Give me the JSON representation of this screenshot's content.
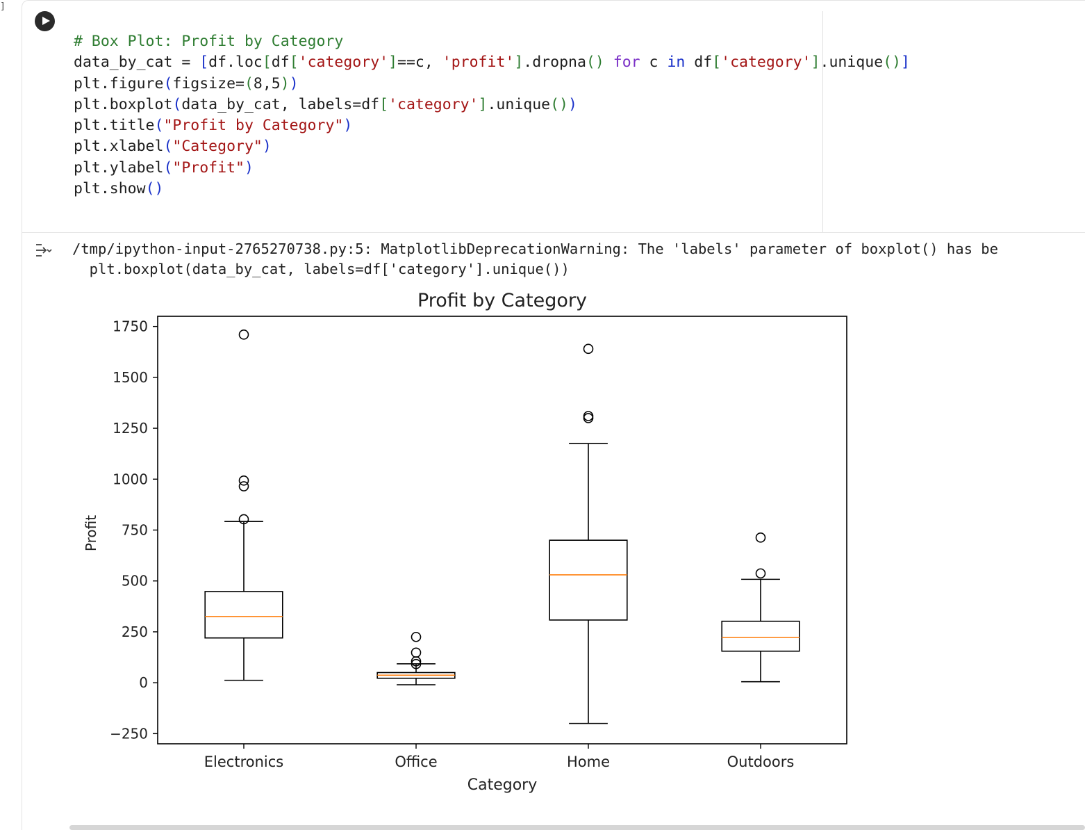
{
  "gutter": {
    "marker": "]"
  },
  "cell": {
    "run_icon": "play-icon",
    "code_lines": [
      [
        {
          "t": "# Box Plot: Profit by Category",
          "c": "cmt"
        }
      ],
      [
        {
          "t": "data_by_cat = "
        },
        {
          "t": "[",
          "c": "b1"
        },
        {
          "t": "df.loc"
        },
        {
          "t": "[",
          "c": "b2"
        },
        {
          "t": "df"
        },
        {
          "t": "[",
          "c": "b2"
        },
        {
          "t": "'category'",
          "c": "str"
        },
        {
          "t": "]",
          "c": "b2"
        },
        {
          "t": "==c, "
        },
        {
          "t": "'profit'",
          "c": "str"
        },
        {
          "t": "]",
          "c": "b2"
        },
        {
          "t": ".dropna"
        },
        {
          "t": "()",
          "c": "b2"
        },
        {
          "t": " "
        },
        {
          "t": "for",
          "c": "kw"
        },
        {
          "t": " c "
        },
        {
          "t": "in",
          "c": "in"
        },
        {
          "t": " df"
        },
        {
          "t": "[",
          "c": "b2"
        },
        {
          "t": "'category'",
          "c": "str"
        },
        {
          "t": "]",
          "c": "b2"
        },
        {
          "t": ".unique"
        },
        {
          "t": "()",
          "c": "b2"
        },
        {
          "t": "]",
          "c": "b1"
        }
      ],
      [
        {
          "t": "plt.figure"
        },
        {
          "t": "(",
          "c": "b1"
        },
        {
          "t": "figsize="
        },
        {
          "t": "(",
          "c": "b2"
        },
        {
          "t": "8,5"
        },
        {
          "t": ")",
          "c": "b2"
        },
        {
          "t": ")",
          "c": "b1"
        }
      ],
      [
        {
          "t": "plt.boxplot"
        },
        {
          "t": "(",
          "c": "b1"
        },
        {
          "t": "data_by_cat, labels=df"
        },
        {
          "t": "[",
          "c": "b2"
        },
        {
          "t": "'category'",
          "c": "str"
        },
        {
          "t": "]",
          "c": "b2"
        },
        {
          "t": ".unique"
        },
        {
          "t": "()",
          "c": "b2"
        },
        {
          "t": ")",
          "c": "b1"
        }
      ],
      [
        {
          "t": "plt.title"
        },
        {
          "t": "(",
          "c": "b1"
        },
        {
          "t": "\"Profit by Category\"",
          "c": "str"
        },
        {
          "t": ")",
          "c": "b1"
        }
      ],
      [
        {
          "t": "plt.xlabel"
        },
        {
          "t": "(",
          "c": "b1"
        },
        {
          "t": "\"Category\"",
          "c": "str"
        },
        {
          "t": ")",
          "c": "b1"
        }
      ],
      [
        {
          "t": "plt.ylabel"
        },
        {
          "t": "(",
          "c": "b1"
        },
        {
          "t": "\"Profit\"",
          "c": "str"
        },
        {
          "t": ")",
          "c": "b1"
        }
      ],
      [
        {
          "t": "plt.show"
        },
        {
          "t": "()",
          "c": "b1"
        }
      ]
    ]
  },
  "output": {
    "toggle_icon": "output-collapse-icon",
    "warning_lines": [
      "/tmp/ipython-input-2765270738.py:5: MatplotlibDeprecationWarning: The 'labels' parameter of boxplot() has be",
      "  plt.boxplot(data_by_cat, labels=df['category'].unique())"
    ]
  },
  "chart_data": {
    "type": "box",
    "title": "Profit by Category",
    "xlabel": "Category",
    "ylabel": "Profit",
    "ylim": [
      -300,
      1800
    ],
    "yticks": [
      -250,
      0,
      250,
      500,
      750,
      1000,
      1250,
      1500,
      1750
    ],
    "ytick_labels": [
      "−250",
      "0",
      "250",
      "500",
      "750",
      "1000",
      "1250",
      "1500",
      "1750"
    ],
    "grid": false,
    "colors": {
      "box": "#000000",
      "median": "#ff7f0e"
    },
    "categories": [
      "Electronics",
      "Office",
      "Home",
      "Outdoors"
    ],
    "boxes": [
      {
        "name": "Electronics",
        "whisker_low": 12,
        "q1": 220,
        "median": 325,
        "q3": 448,
        "whisker_high": 792,
        "outliers": [
          803,
          965,
          993,
          1710
        ]
      },
      {
        "name": "Office",
        "whisker_low": -10,
        "q1": 22,
        "median": 37,
        "q3": 50,
        "whisker_high": 93,
        "outliers": [
          92,
          105,
          148,
          225
        ]
      },
      {
        "name": "Home",
        "whisker_low": -200,
        "q1": 308,
        "median": 530,
        "q3": 700,
        "whisker_high": 1175,
        "outliers": [
          1300,
          1310,
          1640
        ]
      },
      {
        "name": "Outdoors",
        "whisker_low": 5,
        "q1": 155,
        "median": 222,
        "q3": 302,
        "whisker_high": 508,
        "outliers": [
          537,
          713
        ]
      }
    ]
  }
}
